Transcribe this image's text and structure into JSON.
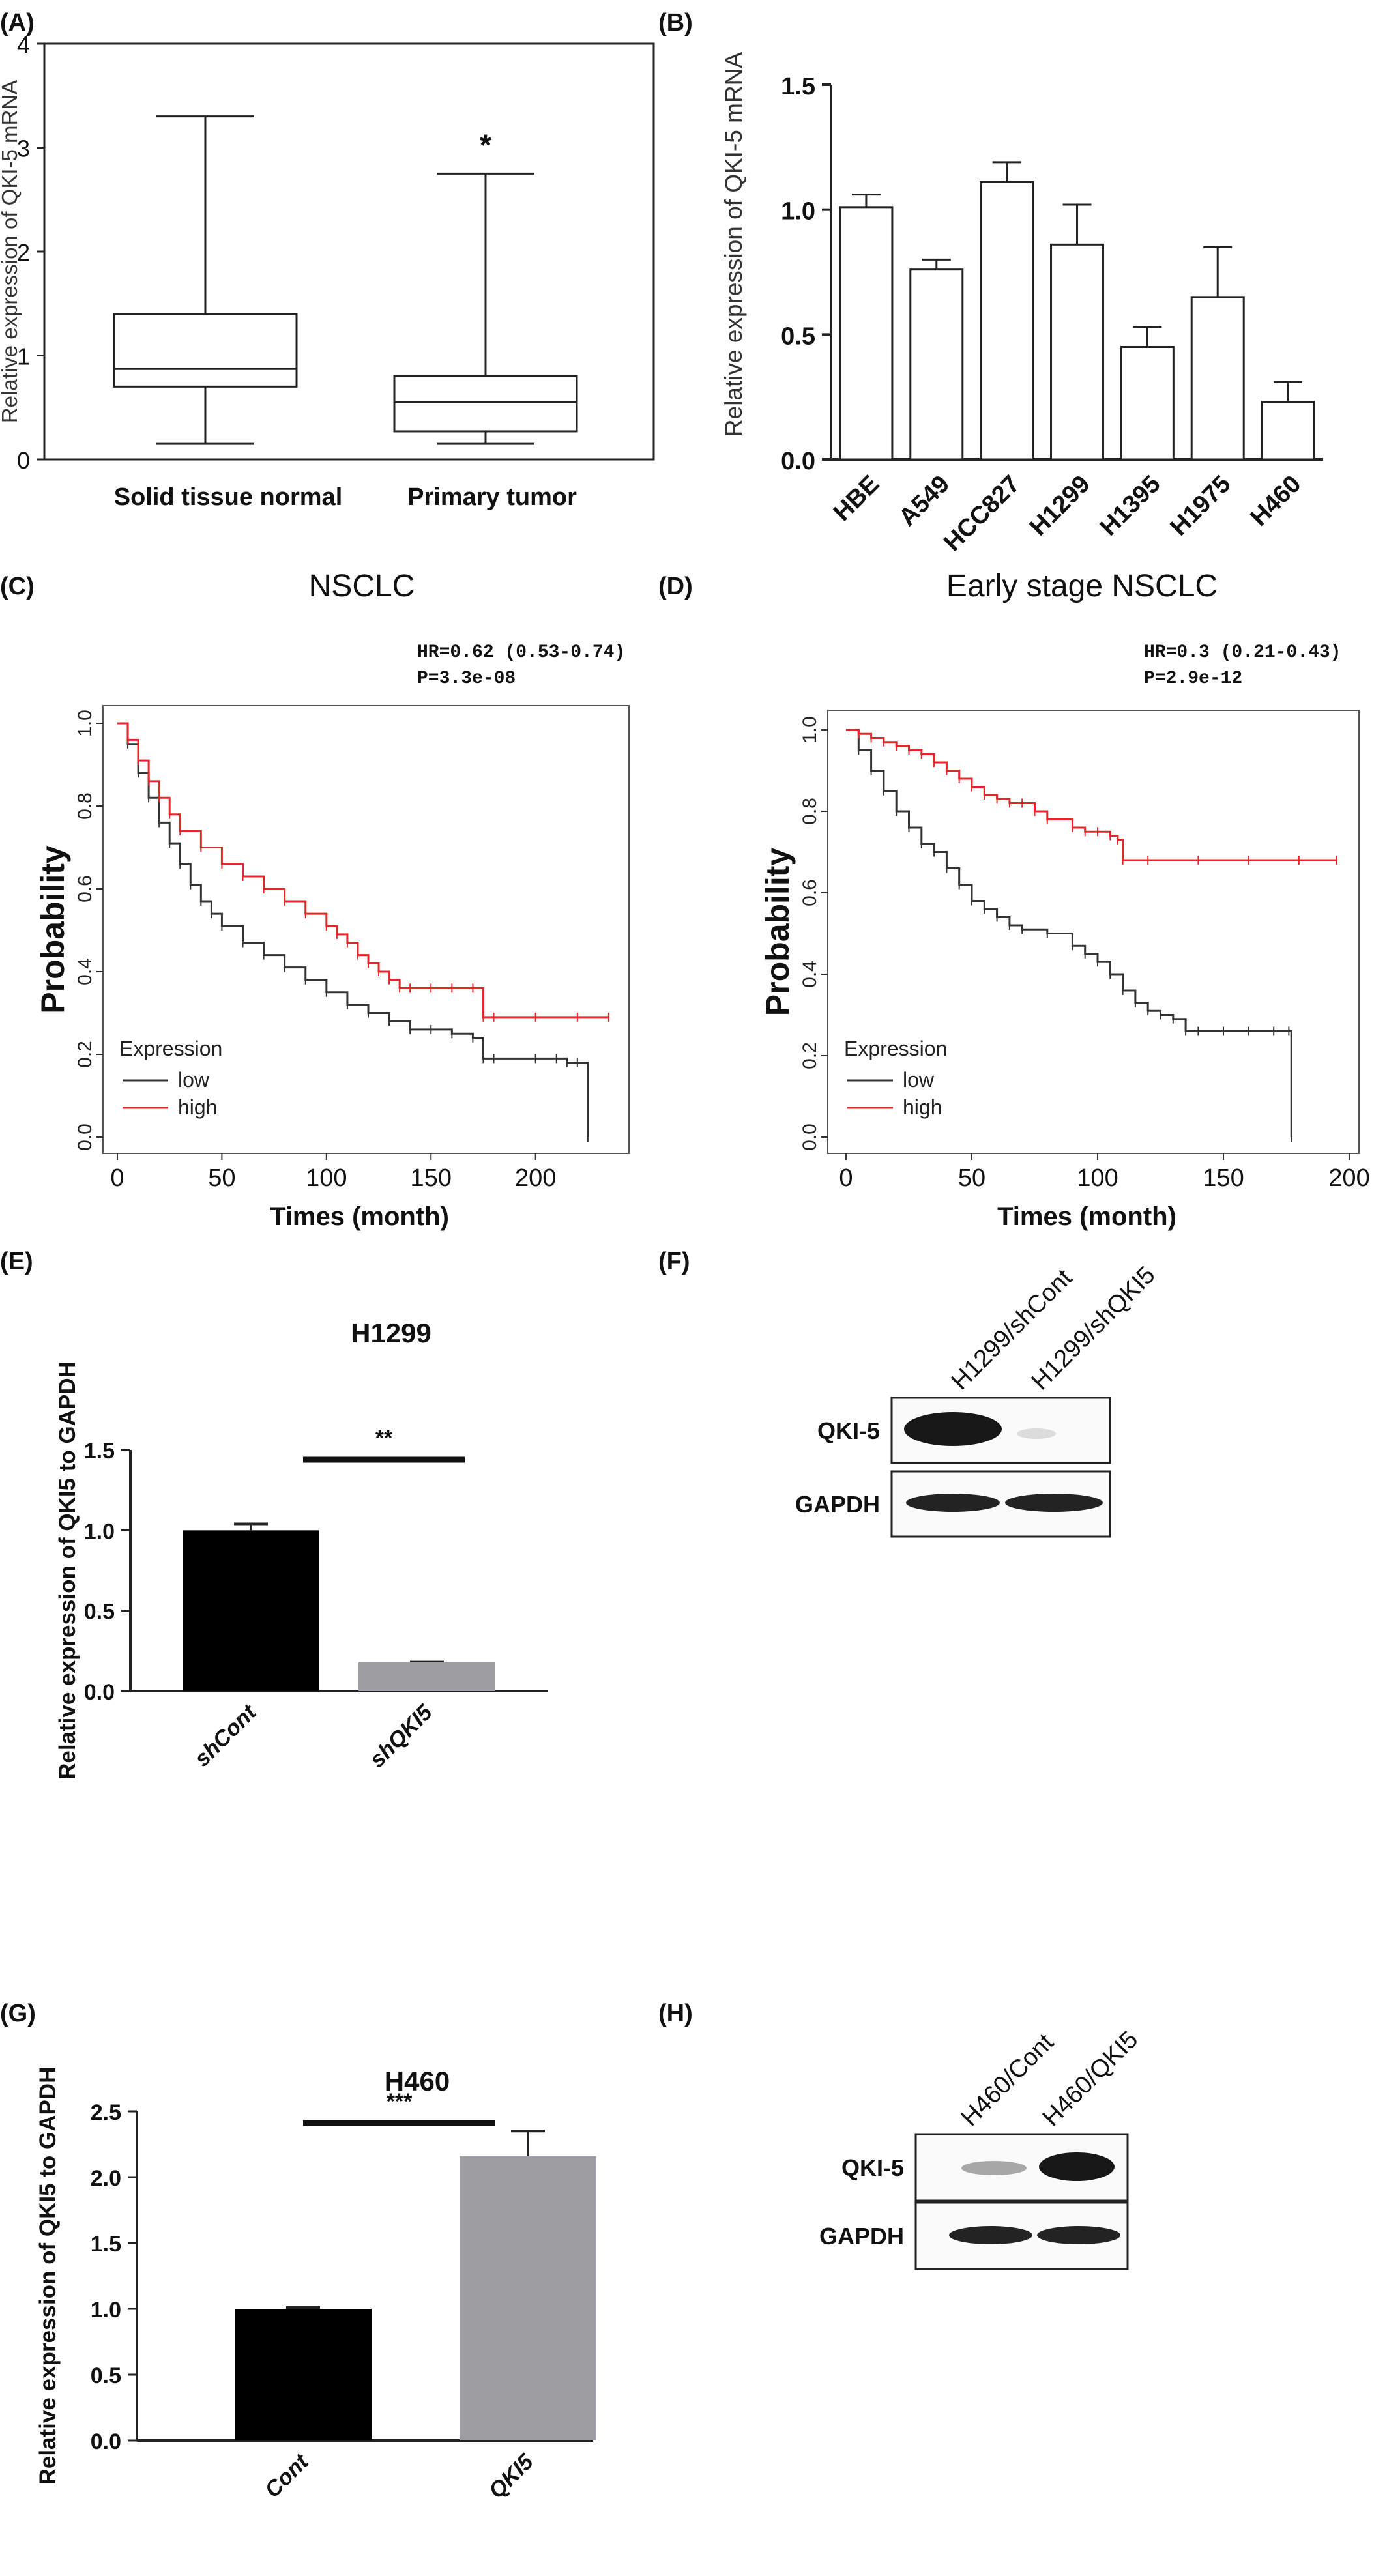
{
  "panels": {
    "A": {
      "label": "(A)",
      "ylabel": "Relative expression of QKI-5 mRNA",
      "yticks": [
        "0",
        "1",
        "2",
        "3",
        "4"
      ],
      "categories": [
        "Solid tissue normal",
        "Primary tumor"
      ],
      "sig": "*"
    },
    "B": {
      "label": "(B)",
      "ylabel": "Relative  expression of QKI-5 mRNA",
      "yticks": [
        "0.0",
        "0.5",
        "1.0",
        "1.5"
      ],
      "categories": [
        "HBE",
        "A549",
        "HCC827",
        "H1299",
        "H1395",
        "H1975",
        "H460"
      ]
    },
    "C": {
      "label": "(C)",
      "title": "NSCLC",
      "hr": "HR=0.62 (0.53-0.74)",
      "p": "P=3.3e-08",
      "ylabel": "Probability",
      "xlabel": "Times (month)",
      "xticks": [
        "0",
        "50",
        "100",
        "150",
        "200"
      ],
      "yticks": [
        "0.0",
        "0.2",
        "0.4",
        "0.6",
        "0.8",
        "1.0"
      ],
      "legend_title": "Expression",
      "legend": [
        "low",
        "high"
      ]
    },
    "D": {
      "label": "(D)",
      "title": "Early stage NSCLC",
      "hr": "HR=0.3 (0.21-0.43)",
      "p": "P=2.9e-12",
      "ylabel": "Probability",
      "xlabel": "Times (month)",
      "xticks": [
        "0",
        "50",
        "100",
        "150",
        "200"
      ],
      "yticks": [
        "0.0",
        "0.2",
        "0.4",
        "0.6",
        "0.8",
        "1.0"
      ],
      "legend_title": "Expression",
      "legend": [
        "low",
        "high"
      ]
    },
    "E": {
      "label": "(E)",
      "title": "H1299",
      "ylabel": "Relative expression of QKI5 to GAPDH",
      "yticks": [
        "0.0",
        "0.5",
        "1.0",
        "1.5"
      ],
      "categories": [
        "shCont",
        "shQKI5"
      ],
      "sig": "**"
    },
    "F": {
      "label": "(F)",
      "lanes": [
        "H1299/shCont",
        "H1299/shQKI5"
      ],
      "rows": [
        "QKI-5",
        "GAPDH"
      ]
    },
    "G": {
      "label": "(G)",
      "title": "H460",
      "ylabel": "Relative expression of QKI5 to GAPDH",
      "yticks": [
        "0.0",
        "0.5",
        "1.0",
        "1.5",
        "2.0",
        "2.5"
      ],
      "categories": [
        "Cont",
        "QKI5"
      ],
      "sig": "***"
    },
    "H": {
      "label": "(H)",
      "lanes": [
        "H460/Cont",
        "H460/QKI5"
      ],
      "rows": [
        "QKI-5",
        "GAPDH"
      ]
    }
  },
  "chart_data": [
    {
      "type": "box",
      "panel": "A",
      "categories": [
        "Solid tissue normal",
        "Primary tumor"
      ],
      "boxes": [
        {
          "min": 0.15,
          "q1": 0.7,
          "median": 0.87,
          "q3": 1.4,
          "max": 3.3
        },
        {
          "min": 0.15,
          "q1": 0.27,
          "median": 0.55,
          "q3": 0.8,
          "max": 2.75
        }
      ],
      "ylim": [
        0,
        4
      ]
    },
    {
      "type": "bar",
      "panel": "B",
      "categories": [
        "HBE",
        "A549",
        "HCC827",
        "H1299",
        "H1395",
        "H1975",
        "H460"
      ],
      "values": [
        1.01,
        0.76,
        1.11,
        0.86,
        0.45,
        0.65,
        0.23
      ],
      "errors": [
        0.05,
        0.04,
        0.08,
        0.16,
        0.08,
        0.2,
        0.08
      ],
      "ylim": [
        0,
        1.5
      ]
    },
    {
      "type": "line",
      "panel": "C",
      "xlim": [
        0,
        240
      ],
      "ylim": [
        0,
        1
      ],
      "series": [
        {
          "name": "low",
          "color": "#333333",
          "x": [
            0,
            5,
            10,
            15,
            20,
            25,
            30,
            35,
            40,
            45,
            50,
            60,
            70,
            80,
            90,
            100,
            110,
            120,
            130,
            140,
            150,
            160,
            170,
            175,
            180,
            200,
            210,
            215,
            220,
            225
          ],
          "y": [
            1.0,
            0.95,
            0.88,
            0.82,
            0.76,
            0.71,
            0.66,
            0.61,
            0.57,
            0.54,
            0.51,
            0.47,
            0.44,
            0.41,
            0.38,
            0.35,
            0.32,
            0.3,
            0.28,
            0.26,
            0.26,
            0.25,
            0.24,
            0.19,
            0.19,
            0.19,
            0.19,
            0.18,
            0.18,
            0.0
          ]
        },
        {
          "name": "high",
          "color": "#e8242b",
          "x": [
            0,
            5,
            10,
            15,
            20,
            25,
            30,
            40,
            50,
            60,
            70,
            80,
            90,
            100,
            105,
            110,
            115,
            120,
            125,
            130,
            135,
            140,
            150,
            160,
            170,
            175,
            180,
            200,
            220,
            235
          ],
          "y": [
            1.0,
            0.96,
            0.91,
            0.86,
            0.82,
            0.78,
            0.74,
            0.7,
            0.66,
            0.63,
            0.6,
            0.57,
            0.54,
            0.51,
            0.49,
            0.47,
            0.44,
            0.42,
            0.4,
            0.38,
            0.36,
            0.36,
            0.36,
            0.36,
            0.36,
            0.29,
            0.29,
            0.29,
            0.29,
            0.29
          ]
        }
      ]
    },
    {
      "type": "line",
      "panel": "D",
      "xlim": [
        0,
        200
      ],
      "ylim": [
        0,
        1
      ],
      "series": [
        {
          "name": "low",
          "color": "#333333",
          "x": [
            0,
            5,
            10,
            15,
            20,
            25,
            30,
            35,
            40,
            45,
            50,
            55,
            60,
            65,
            70,
            80,
            90,
            95,
            100,
            105,
            110,
            115,
            120,
            125,
            130,
            135,
            140,
            150,
            160,
            170,
            176,
            177
          ],
          "y": [
            1.0,
            0.95,
            0.9,
            0.85,
            0.8,
            0.76,
            0.72,
            0.7,
            0.66,
            0.62,
            0.58,
            0.56,
            0.54,
            0.52,
            0.51,
            0.5,
            0.47,
            0.45,
            0.43,
            0.4,
            0.36,
            0.33,
            0.31,
            0.3,
            0.29,
            0.26,
            0.26,
            0.26,
            0.26,
            0.26,
            0.26,
            0.0
          ]
        },
        {
          "name": "high",
          "color": "#e8242b",
          "x": [
            0,
            5,
            10,
            15,
            20,
            25,
            30,
            35,
            40,
            45,
            50,
            55,
            60,
            65,
            70,
            75,
            80,
            90,
            95,
            100,
            105,
            108,
            110,
            120,
            140,
            160,
            180,
            195
          ],
          "y": [
            1.0,
            0.99,
            0.98,
            0.97,
            0.96,
            0.95,
            0.94,
            0.92,
            0.9,
            0.88,
            0.86,
            0.84,
            0.83,
            0.82,
            0.82,
            0.8,
            0.78,
            0.76,
            0.75,
            0.75,
            0.74,
            0.73,
            0.68,
            0.68,
            0.68,
            0.68,
            0.68,
            0.68
          ]
        }
      ]
    },
    {
      "type": "bar",
      "panel": "E",
      "categories": [
        "shCont",
        "shQKI5"
      ],
      "values": [
        1.0,
        0.18
      ],
      "errors": [
        0.04,
        0.0
      ],
      "colors": [
        "#000000",
        "#9e9ea2"
      ],
      "ylim": [
        0,
        1.5
      ]
    },
    {
      "type": "bar",
      "panel": "G",
      "categories": [
        "Cont",
        "QKI5"
      ],
      "values": [
        1.0,
        2.16
      ],
      "errors": [
        0.01,
        0.19
      ],
      "colors": [
        "#000000",
        "#9e9ea2"
      ],
      "ylim": [
        0,
        2.5
      ]
    }
  ]
}
